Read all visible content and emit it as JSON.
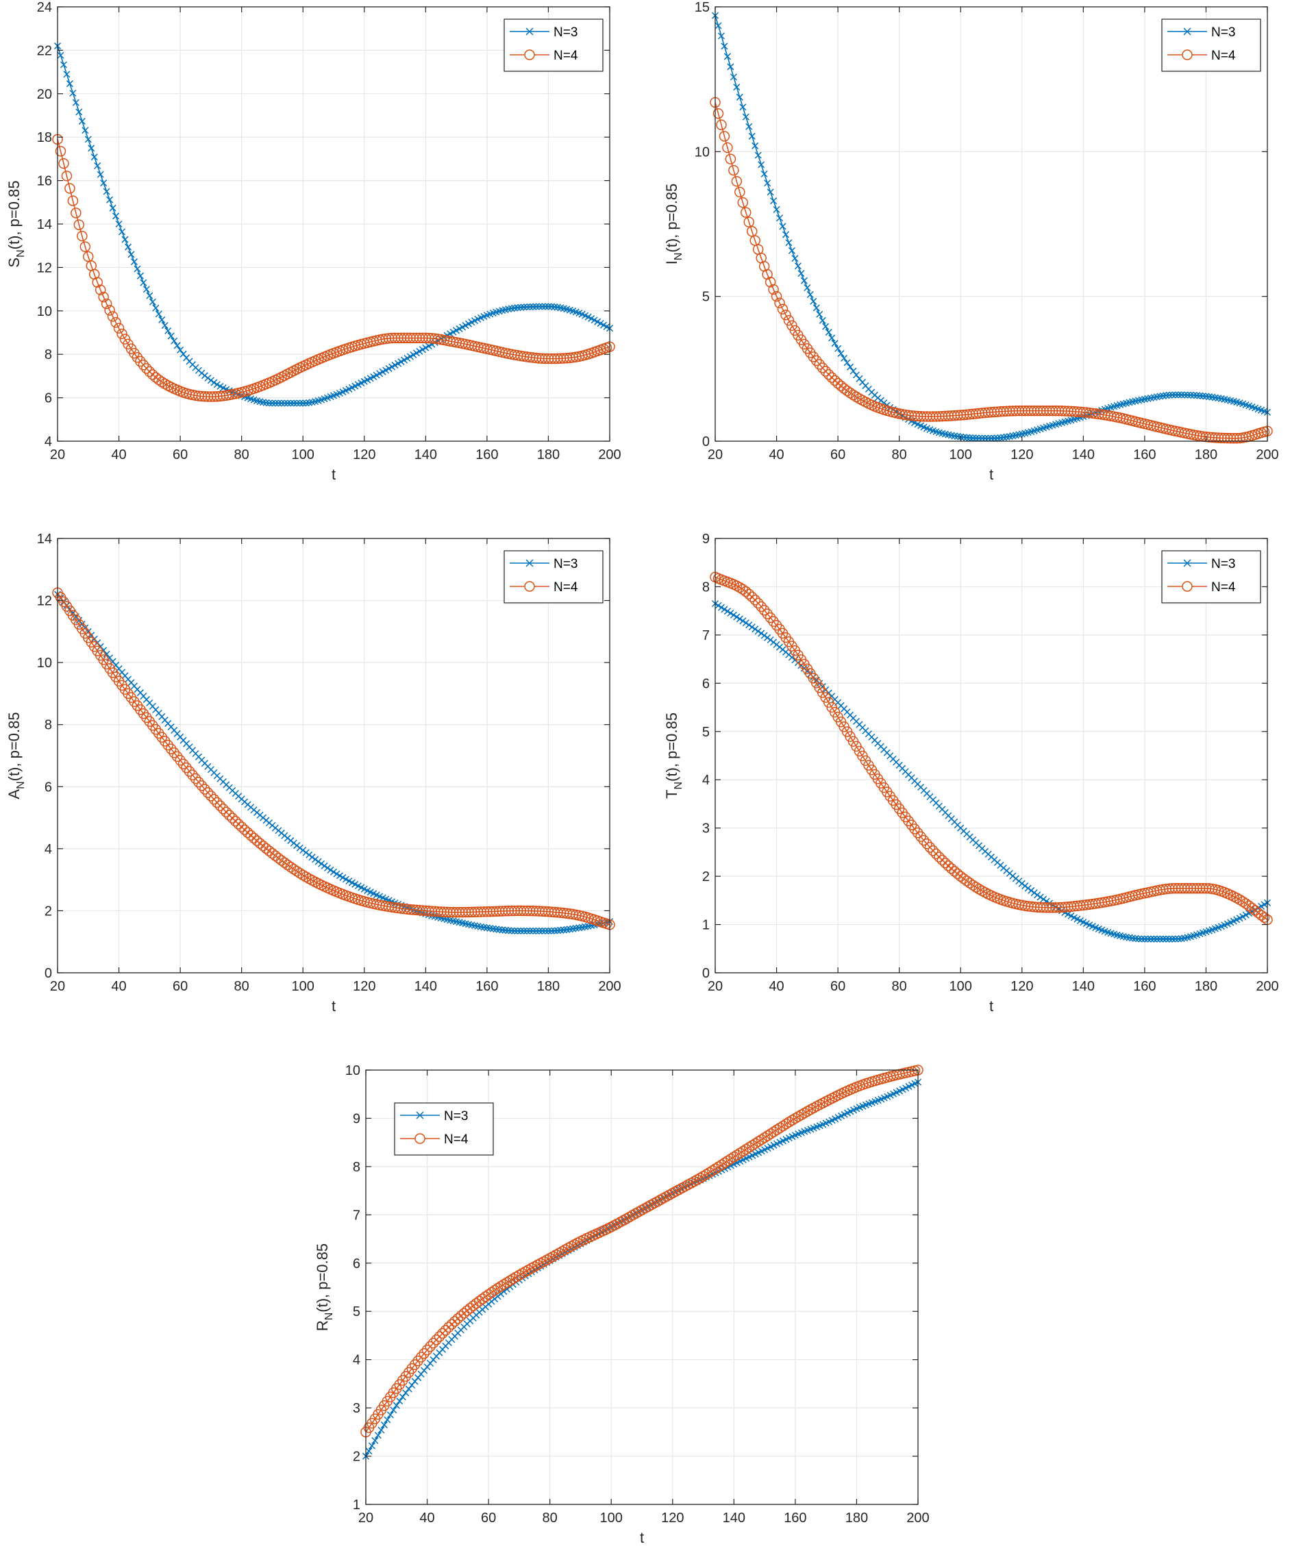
{
  "chart_data": [
    {
      "id": "S",
      "type": "line",
      "xlabel": "t",
      "ylabel": {
        "main": "S",
        "sub": "N",
        "rest": "(t), p=0.85"
      },
      "xlim": [
        20,
        200
      ],
      "ylim": [
        4,
        24
      ],
      "xticks": [
        20,
        40,
        60,
        80,
        100,
        120,
        140,
        160,
        180,
        200
      ],
      "yticks": [
        4,
        6,
        8,
        10,
        12,
        14,
        16,
        18,
        20,
        22,
        24
      ],
      "grid": true,
      "legend_position": "top-right",
      "series": [
        {
          "name": "N=3",
          "color": "#0072BD",
          "marker": "x",
          "x": [
            20,
            30,
            40,
            50,
            60,
            70,
            80,
            90,
            100,
            110,
            120,
            130,
            140,
            150,
            160,
            170,
            180,
            190,
            200
          ],
          "y": [
            22.2,
            17.9,
            14.0,
            10.7,
            8.2,
            6.8,
            6.1,
            5.75,
            5.75,
            6.1,
            6.75,
            7.5,
            8.3,
            9.1,
            9.8,
            10.15,
            10.2,
            9.9,
            9.2
          ]
        },
        {
          "name": "N=4",
          "color": "#D95319",
          "marker": "o",
          "x": [
            20,
            30,
            40,
            50,
            60,
            70,
            80,
            90,
            100,
            110,
            120,
            130,
            140,
            150,
            160,
            170,
            180,
            190,
            200
          ],
          "y": [
            17.9,
            12.5,
            9.2,
            7.2,
            6.3,
            6.05,
            6.25,
            6.75,
            7.45,
            8.05,
            8.5,
            8.75,
            8.75,
            8.55,
            8.25,
            7.95,
            7.8,
            7.9,
            8.35
          ]
        }
      ]
    },
    {
      "id": "I",
      "type": "line",
      "xlabel": "t",
      "ylabel": {
        "main": "I",
        "sub": "N",
        "rest": "(t), p=0.85"
      },
      "xlim": [
        20,
        200
      ],
      "ylim": [
        0,
        15
      ],
      "xticks": [
        20,
        40,
        60,
        80,
        100,
        120,
        140,
        160,
        180,
        200
      ],
      "yticks": [
        0,
        5,
        10,
        15
      ],
      "grid": true,
      "legend_position": "top-right",
      "series": [
        {
          "name": "N=3",
          "color": "#0072BD",
          "marker": "x",
          "x": [
            20,
            30,
            40,
            50,
            60,
            70,
            80,
            90,
            100,
            110,
            120,
            130,
            140,
            150,
            160,
            170,
            180,
            190,
            200
          ],
          "y": [
            14.7,
            11.2,
            8.0,
            5.3,
            3.2,
            1.8,
            0.95,
            0.4,
            0.15,
            0.1,
            0.25,
            0.55,
            0.85,
            1.2,
            1.45,
            1.6,
            1.55,
            1.35,
            1.0
          ]
        },
        {
          "name": "N=4",
          "color": "#D95319",
          "marker": "o",
          "x": [
            20,
            30,
            40,
            50,
            60,
            70,
            80,
            90,
            100,
            110,
            120,
            130,
            140,
            150,
            160,
            170,
            180,
            190,
            200
          ],
          "y": [
            11.7,
            7.9,
            5.0,
            3.2,
            2.0,
            1.3,
            0.95,
            0.85,
            0.9,
            1.0,
            1.05,
            1.05,
            1.0,
            0.85,
            0.6,
            0.35,
            0.15,
            0.1,
            0.35
          ]
        }
      ]
    },
    {
      "id": "A",
      "type": "line",
      "xlabel": "t",
      "ylabel": {
        "main": "A",
        "sub": "N",
        "rest": "(t), p=0.85"
      },
      "xlim": [
        20,
        200
      ],
      "ylim": [
        0,
        14
      ],
      "xticks": [
        20,
        40,
        60,
        80,
        100,
        120,
        140,
        160,
        180,
        200
      ],
      "yticks": [
        0,
        2,
        4,
        6,
        8,
        10,
        12,
        14
      ],
      "grid": true,
      "legend_position": "top-right",
      "series": [
        {
          "name": "N=3",
          "color": "#0072BD",
          "marker": "x",
          "x": [
            20,
            30,
            40,
            50,
            60,
            70,
            80,
            90,
            100,
            110,
            120,
            130,
            140,
            150,
            160,
            170,
            180,
            190,
            200
          ],
          "y": [
            12.2,
            11.0,
            9.8,
            8.7,
            7.6,
            6.55,
            5.6,
            4.75,
            3.95,
            3.25,
            2.7,
            2.25,
            1.9,
            1.65,
            1.45,
            1.35,
            1.35,
            1.45,
            1.65
          ]
        },
        {
          "name": "N=4",
          "color": "#D95319",
          "marker": "o",
          "x": [
            20,
            30,
            40,
            50,
            60,
            70,
            80,
            90,
            100,
            110,
            120,
            130,
            140,
            150,
            160,
            170,
            180,
            190,
            200
          ],
          "y": [
            12.25,
            10.8,
            9.4,
            8.1,
            6.85,
            5.7,
            4.7,
            3.85,
            3.15,
            2.65,
            2.3,
            2.1,
            2.0,
            1.95,
            1.97,
            2.0,
            1.97,
            1.85,
            1.55
          ]
        }
      ]
    },
    {
      "id": "T",
      "type": "line",
      "xlabel": "t",
      "ylabel": {
        "main": "T",
        "sub": "N",
        "rest": "(t), p=0.85"
      },
      "xlim": [
        20,
        200
      ],
      "ylim": [
        0,
        9
      ],
      "xticks": [
        20,
        40,
        60,
        80,
        100,
        120,
        140,
        160,
        180,
        200
      ],
      "yticks": [
        0,
        1,
        2,
        3,
        4,
        5,
        6,
        7,
        8,
        9
      ],
      "grid": true,
      "legend_position": "top-right",
      "series": [
        {
          "name": "N=3",
          "color": "#0072BD",
          "marker": "x",
          "x": [
            20,
            30,
            40,
            50,
            60,
            70,
            80,
            90,
            100,
            110,
            120,
            130,
            140,
            150,
            160,
            170,
            180,
            190,
            200
          ],
          "y": [
            7.65,
            7.25,
            6.8,
            6.25,
            5.6,
            4.95,
            4.3,
            3.65,
            3.0,
            2.4,
            1.85,
            1.4,
            1.05,
            0.8,
            0.7,
            0.7,
            0.85,
            1.1,
            1.45
          ]
        },
        {
          "name": "N=4",
          "color": "#D95319",
          "marker": "o",
          "x": [
            20,
            30,
            40,
            50,
            60,
            70,
            80,
            90,
            100,
            110,
            120,
            130,
            140,
            150,
            160,
            170,
            180,
            190,
            200
          ],
          "y": [
            8.2,
            7.9,
            7.2,
            6.3,
            5.3,
            4.3,
            3.4,
            2.6,
            2.0,
            1.6,
            1.4,
            1.35,
            1.4,
            1.5,
            1.65,
            1.75,
            1.75,
            1.55,
            1.1
          ]
        }
      ]
    },
    {
      "id": "R",
      "type": "line",
      "xlabel": "t",
      "ylabel": {
        "main": "R",
        "sub": "N",
        "rest": "(t), p=0.85"
      },
      "xlim": [
        20,
        200
      ],
      "ylim": [
        1,
        10
      ],
      "xticks": [
        20,
        40,
        60,
        80,
        100,
        120,
        140,
        160,
        180,
        200
      ],
      "yticks": [
        1,
        2,
        3,
        4,
        5,
        6,
        7,
        8,
        9,
        10
      ],
      "grid": true,
      "legend_position": "top-left",
      "series": [
        {
          "name": "N=3",
          "color": "#0072BD",
          "marker": "x",
          "x": [
            20,
            30,
            40,
            50,
            60,
            70,
            80,
            90,
            100,
            110,
            120,
            130,
            140,
            150,
            160,
            170,
            180,
            190,
            200
          ],
          "y": [
            2.0,
            3.05,
            3.85,
            4.55,
            5.15,
            5.65,
            6.05,
            6.4,
            6.75,
            7.1,
            7.45,
            7.75,
            8.05,
            8.35,
            8.65,
            8.9,
            9.2,
            9.45,
            9.75
          ]
        },
        {
          "name": "N=4",
          "color": "#D95319",
          "marker": "o",
          "x": [
            20,
            30,
            40,
            50,
            60,
            70,
            80,
            90,
            100,
            110,
            120,
            130,
            140,
            150,
            160,
            170,
            180,
            190,
            200
          ],
          "y": [
            2.5,
            3.4,
            4.2,
            4.85,
            5.35,
            5.75,
            6.1,
            6.45,
            6.75,
            7.1,
            7.45,
            7.8,
            8.2,
            8.6,
            9.0,
            9.35,
            9.65,
            9.85,
            10.0
          ]
        }
      ]
    }
  ]
}
